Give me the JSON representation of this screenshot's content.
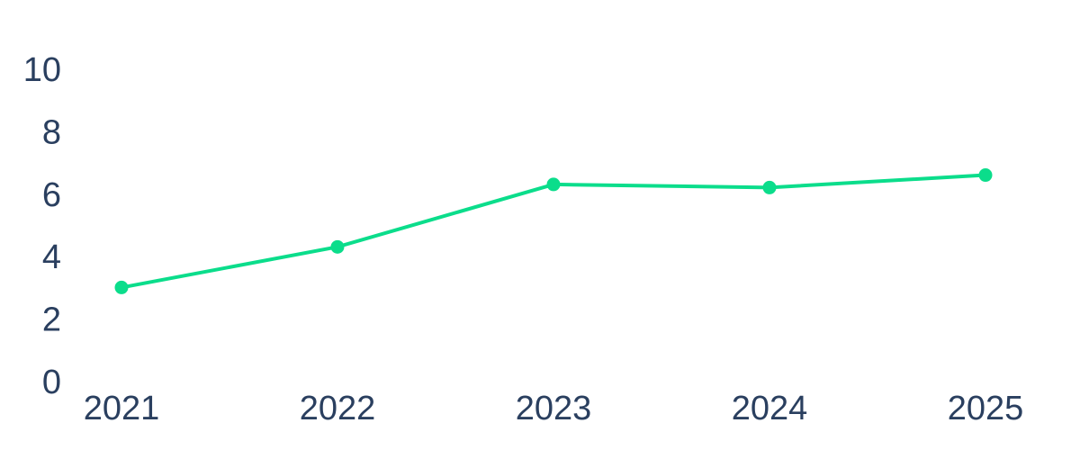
{
  "chart_data": {
    "type": "line",
    "categories": [
      "2021",
      "2022",
      "2023",
      "2024",
      "2025"
    ],
    "series": [
      {
        "color": "#0bdd8b",
        "values": [
          3.1,
          4.4,
          6.4,
          6.3,
          6.7
        ]
      }
    ],
    "ylim": [
      0,
      10
    ],
    "yticks": [
      0,
      2,
      4,
      6,
      8,
      10
    ],
    "grid": false
  }
}
